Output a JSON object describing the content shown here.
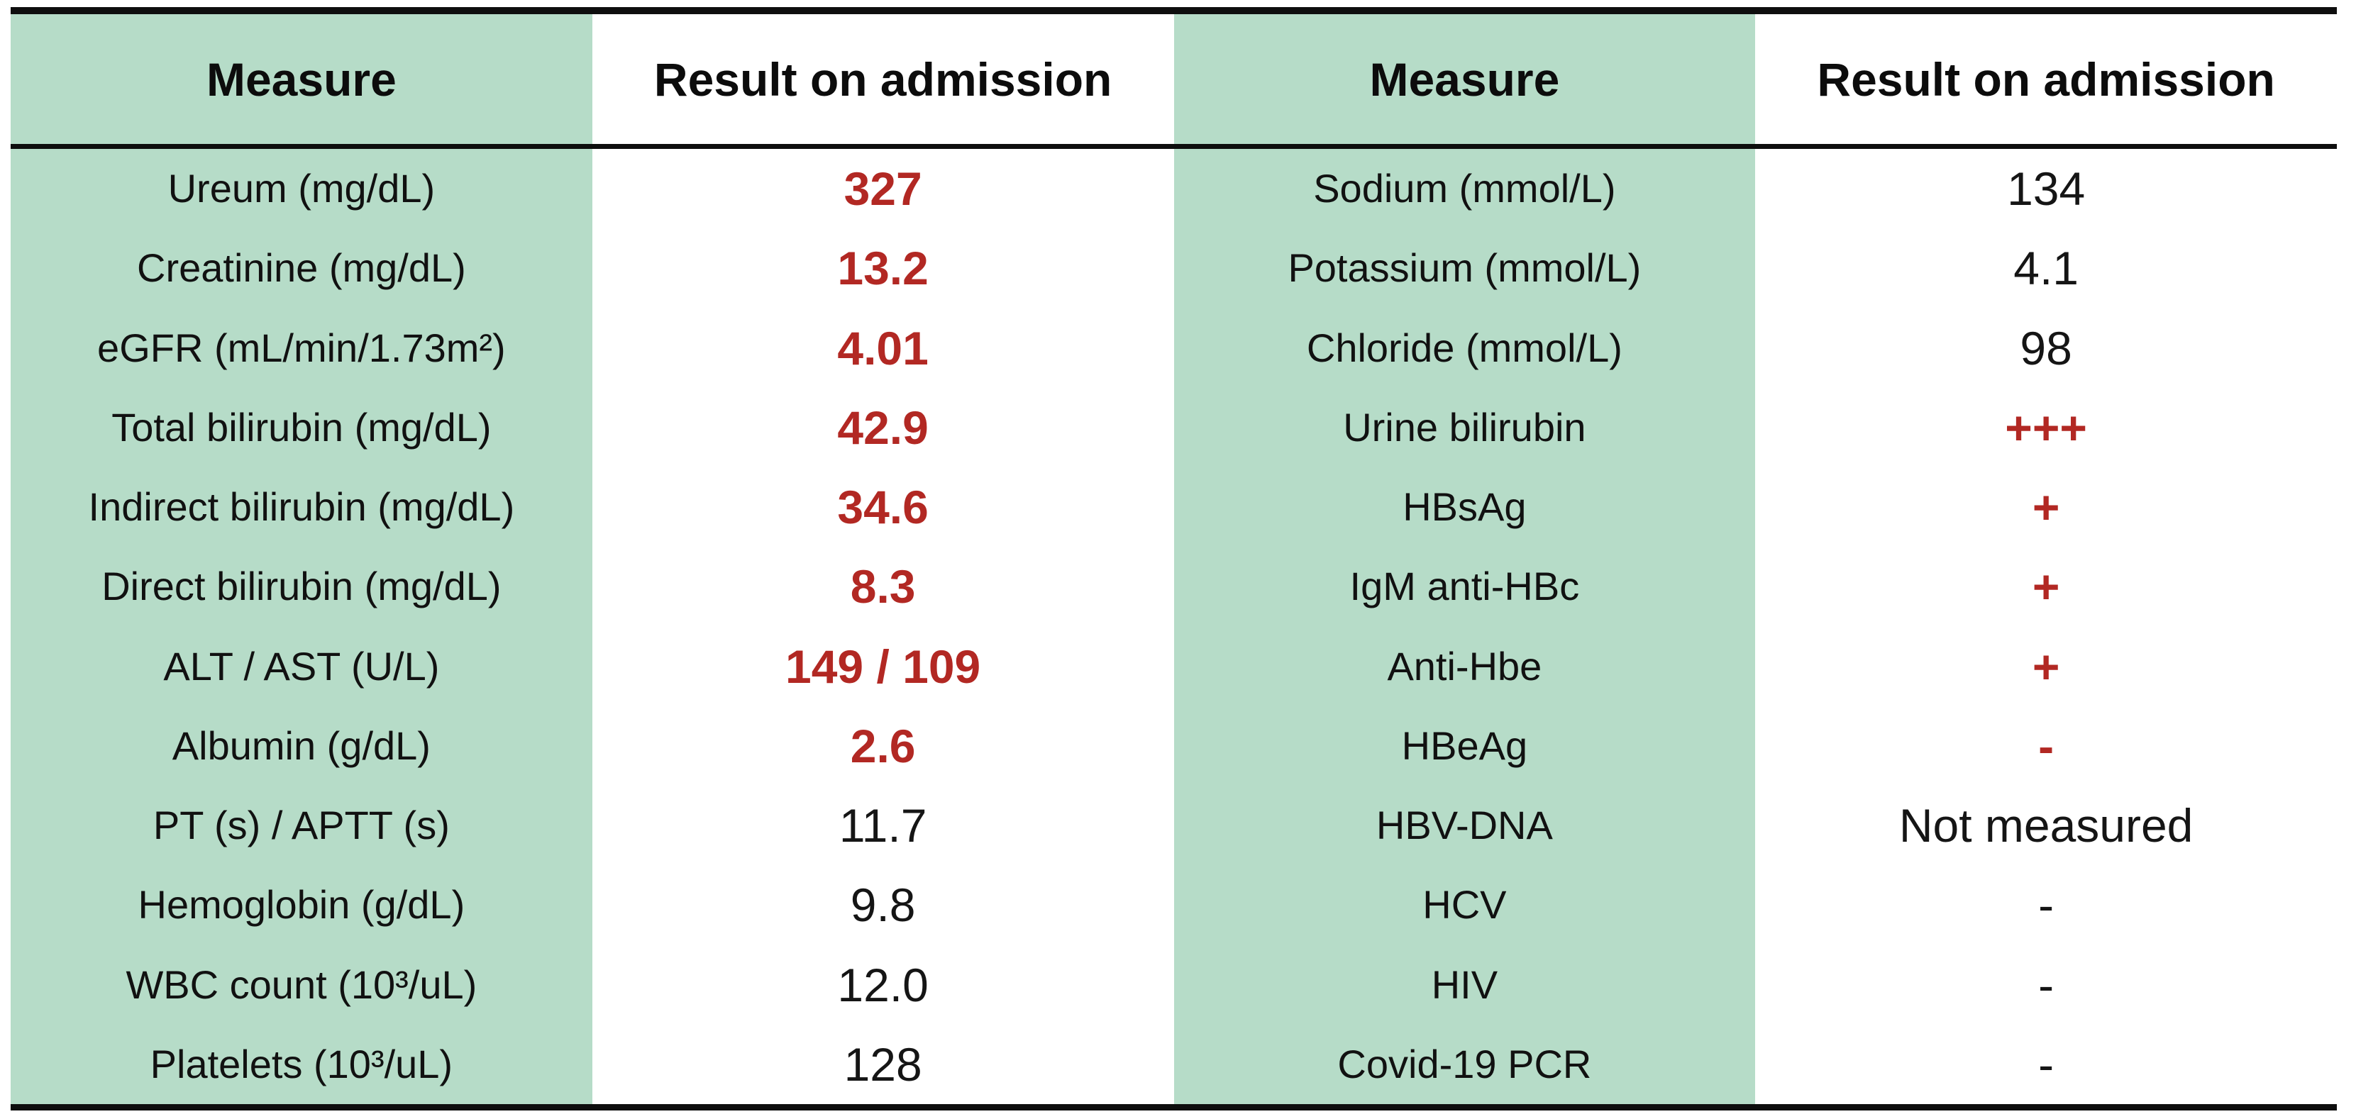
{
  "chart_data": [
    {
      "type": "table",
      "name": "laboratory-results-left",
      "columns": [
        "Measure",
        "Result on admission"
      ],
      "rows": [
        {
          "measure": "Ureum (mg/dL)",
          "value": "327",
          "abnormal": true
        },
        {
          "measure": "Creatinine (mg/dL)",
          "value": "13.2",
          "abnormal": true
        },
        {
          "measure": "eGFR (mL/min/1.73m²)",
          "value": "4.01",
          "abnormal": true
        },
        {
          "measure": "Total bilirubin (mg/dL)",
          "value": "42.9",
          "abnormal": true
        },
        {
          "measure": "Indirect bilirubin (mg/dL)",
          "value": "34.6",
          "abnormal": true
        },
        {
          "measure": "Direct bilirubin (mg/dL)",
          "value": "8.3",
          "abnormal": true
        },
        {
          "measure": "ALT / AST (U/L)",
          "value": "149 / 109",
          "abnormal": true
        },
        {
          "measure": "Albumin (g/dL)",
          "value": "2.6",
          "abnormal": true
        },
        {
          "measure": "PT (s) / APTT (s)",
          "value": "11.7",
          "abnormal": false
        },
        {
          "measure": "Hemoglobin (g/dL)",
          "value": "9.8",
          "abnormal": false
        },
        {
          "measure": "WBC count (10³/uL)",
          "value": "12.0",
          "abnormal": false
        },
        {
          "measure": "Platelets (10³/uL)",
          "value": "128",
          "abnormal": false
        }
      ]
    },
    {
      "type": "table",
      "name": "laboratory-results-right",
      "columns": [
        "Measure",
        "Result on admission"
      ],
      "rows": [
        {
          "measure": "Sodium (mmol/L)",
          "value": "134",
          "abnormal": false
        },
        {
          "measure": "Potassium (mmol/L)",
          "value": "4.1",
          "abnormal": false
        },
        {
          "measure": "Chloride (mmol/L)",
          "value": "98",
          "abnormal": false
        },
        {
          "measure": "Urine bilirubin",
          "value": "+++",
          "abnormal": true
        },
        {
          "measure": "HBsAg",
          "value": "+",
          "abnormal": true
        },
        {
          "measure": "IgM anti-HBc",
          "value": "+",
          "abnormal": true
        },
        {
          "measure": "Anti-Hbe",
          "value": "+",
          "abnormal": true
        },
        {
          "measure": "HBeAg",
          "value": "-",
          "abnormal": true
        },
        {
          "measure": "HBV-DNA",
          "value": "Not measured",
          "abnormal": false
        },
        {
          "measure": "HCV",
          "value": "-",
          "abnormal": false
        },
        {
          "measure": "HIV",
          "value": "-",
          "abnormal": false
        },
        {
          "measure": "Covid-19 PCR",
          "value": "-",
          "abnormal": false
        }
      ]
    }
  ],
  "colors": {
    "measure_column_green": "#b6dcc8",
    "abnormal_value_red": "#b22823",
    "normal_text_black": "#151515",
    "border_black": "#0e0e0e",
    "background_white": "#ffffff"
  }
}
